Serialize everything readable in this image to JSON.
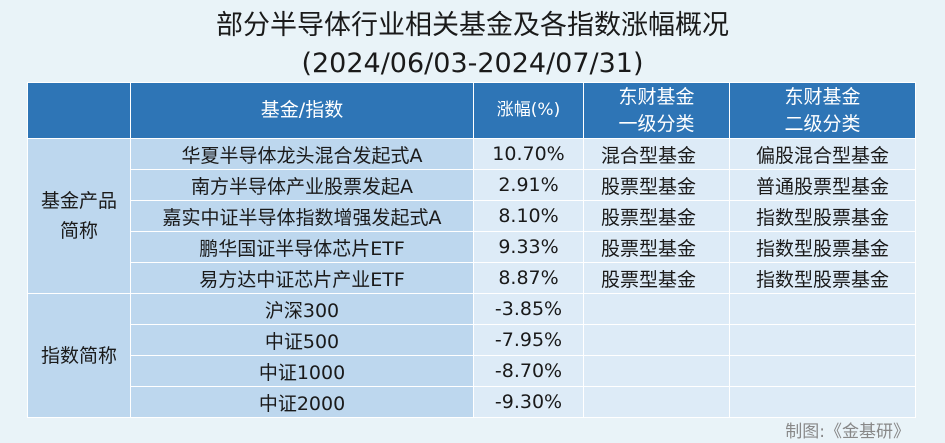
{
  "title": "部分半导体行业相关基金及各指数涨幅概况",
  "subtitle": "(2024/06/03-2024/07/31)",
  "headers": {
    "name": "基金/指数",
    "change": "涨幅(%)",
    "level1_line1": "东财基金",
    "level1_line2": "一级分类",
    "level2_line1": "东财基金",
    "level2_line2": "二级分类"
  },
  "groups": {
    "funds_line1": "基金产品",
    "funds_line2": "简称",
    "indices": "指数简称"
  },
  "funds": [
    {
      "name": "华夏半导体龙头混合发起式A",
      "change": "10.70%",
      "level1": "混合型基金",
      "level2": "偏股混合型基金"
    },
    {
      "name": "南方半导体产业股票发起A",
      "change": "2.91%",
      "level1": "股票型基金",
      "level2": "普通股票型基金"
    },
    {
      "name": "嘉实中证半导体指数增强发起式A",
      "change": "8.10%",
      "level1": "股票型基金",
      "level2": "指数型股票基金"
    },
    {
      "name": "鹏华国证半导体芯片ETF",
      "change": "9.33%",
      "level1": "股票型基金",
      "level2": "指数型股票基金"
    },
    {
      "name": "易方达中证芯片产业ETF",
      "change": "8.87%",
      "level1": "股票型基金",
      "level2": "指数型股票基金"
    }
  ],
  "indices": [
    {
      "name": "沪深300",
      "change": "-3.85%"
    },
    {
      "name": "中证500",
      "change": "-7.95%"
    },
    {
      "name": "中证1000",
      "change": "-8.70%"
    },
    {
      "name": "中证2000",
      "change": "-9.30%"
    }
  ],
  "footer": "制图:《金基研》"
}
